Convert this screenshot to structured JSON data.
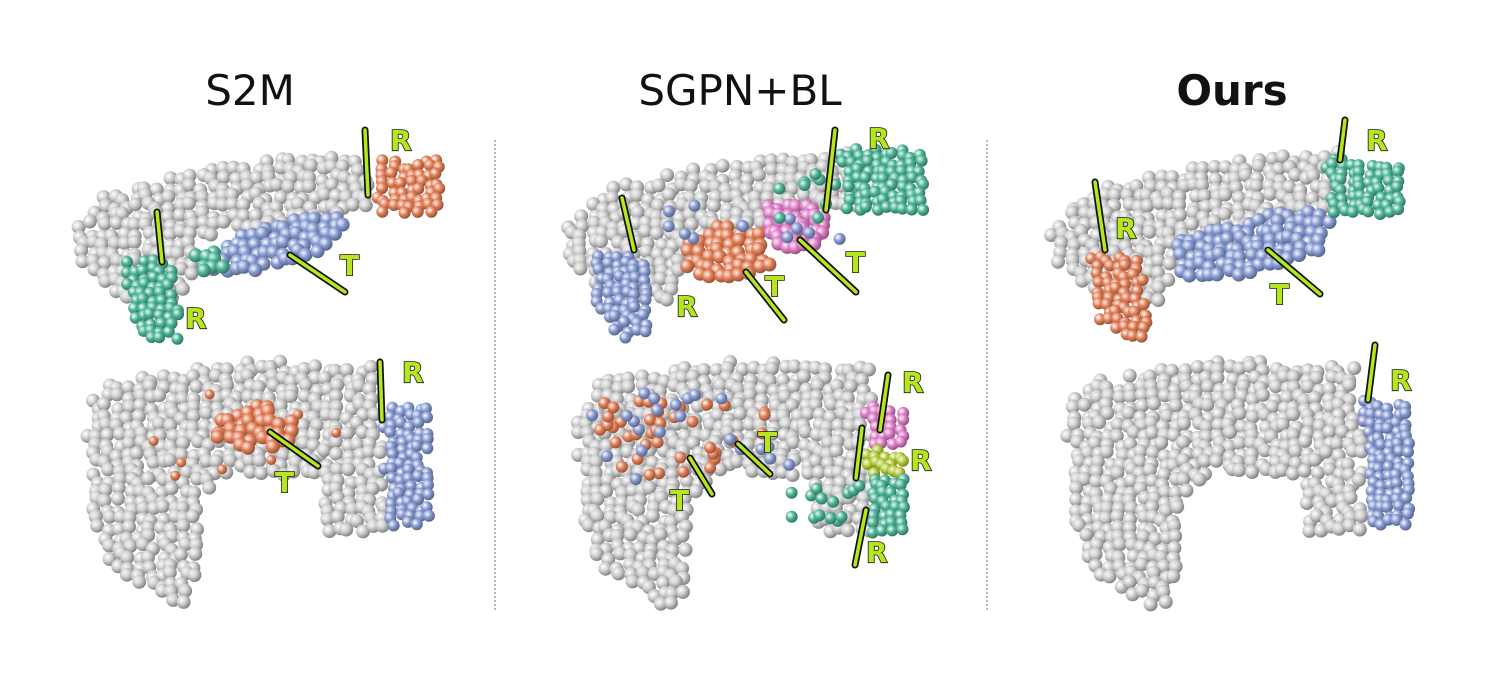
{
  "figure": {
    "columns": [
      {
        "title": "S2M",
        "bold": false
      },
      {
        "title": "SGPN+BL",
        "bold": false
      },
      {
        "title": "Ours",
        "bold": true
      }
    ],
    "labels": {
      "revolute": "R",
      "translational": "T"
    }
  },
  "colors": {
    "gray": "#cfcfcf",
    "orange": "#e8825a",
    "teal": "#4fb89a",
    "blue": "#8a9ed6",
    "pink": "#e27fc9",
    "lime": "#b7cf3b",
    "axis": "#b6e61e"
  }
}
